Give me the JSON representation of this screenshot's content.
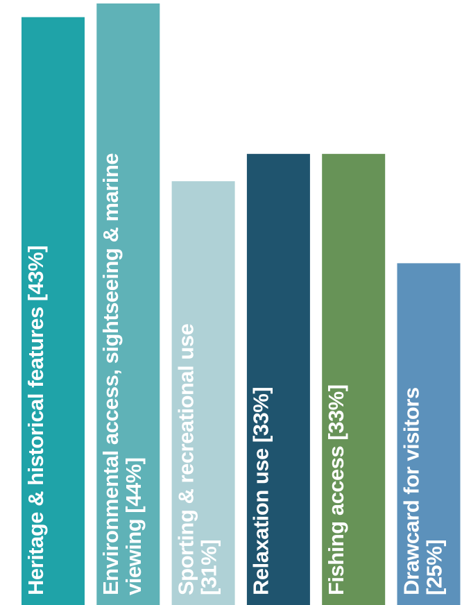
{
  "chart_data": {
    "type": "bar",
    "orientation": "vertical",
    "title": "",
    "xlabel": "",
    "ylabel": "",
    "ylim": [
      0,
      44
    ],
    "grid": false,
    "legend": "none",
    "values": [
      43,
      44,
      31,
      33,
      33,
      25
    ],
    "bars": [
      {
        "value": 43,
        "color": "#1fa3a8",
        "label_lines": [
          "Heritage & historical features [43%]"
        ]
      },
      {
        "value": 44,
        "color": "#5fb2b7",
        "label_lines": [
          "Environmental access, sightseeing & marine",
          "viewing [44%]"
        ]
      },
      {
        "value": 31,
        "color": "#afd1d6",
        "label_lines": [
          "Sporting & recreational use",
          "[31%]"
        ]
      },
      {
        "value": 33,
        "color": "#1f546e",
        "label_lines": [
          "Relaxation use [33%]"
        ]
      },
      {
        "value": 33,
        "color": "#679357",
        "label_lines": [
          "Fishing access [33%]"
        ]
      },
      {
        "value": 25,
        "color": "#5c91bb",
        "label_lines": [
          "Drawcard for visitors",
          "[25%]"
        ]
      }
    ]
  }
}
